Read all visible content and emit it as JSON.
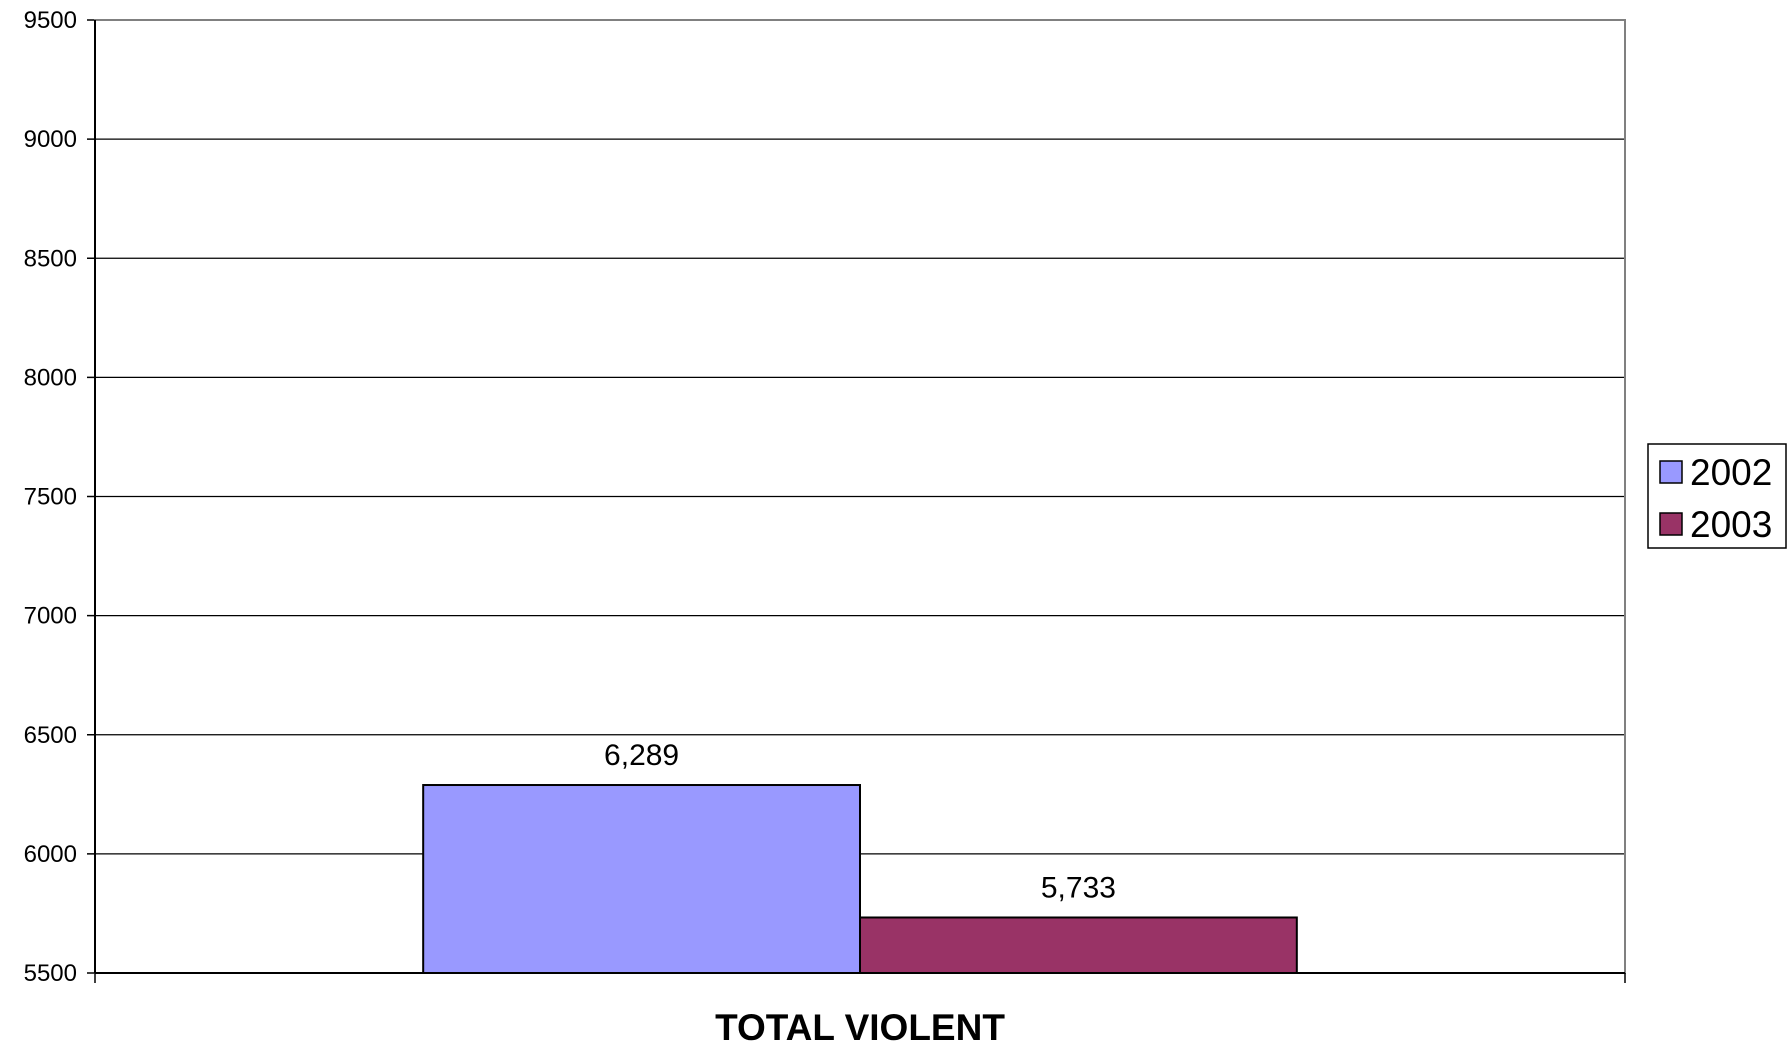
{
  "chart_data": {
    "type": "bar",
    "categories": [
      "TOTAL VIOLENT"
    ],
    "series": [
      {
        "name": "2002",
        "values": [
          6289
        ],
        "label": "6,289",
        "color": "#9999ff"
      },
      {
        "name": "2003",
        "values": [
          5733
        ],
        "label": "5,733",
        "color": "#993366"
      }
    ],
    "ylim": [
      5500,
      9500
    ],
    "y_ticks": [
      5500,
      6000,
      6500,
      7000,
      7500,
      8000,
      8500,
      9000,
      9500
    ],
    "y_tick_labels": [
      "5500",
      "6000",
      "6500",
      "7000",
      "7500",
      "8000",
      "8500",
      "9000",
      "9500"
    ],
    "xlabel": "TOTAL VIOLENT",
    "ylabel": "",
    "title": "",
    "grid": true,
    "legend_position": "right"
  }
}
